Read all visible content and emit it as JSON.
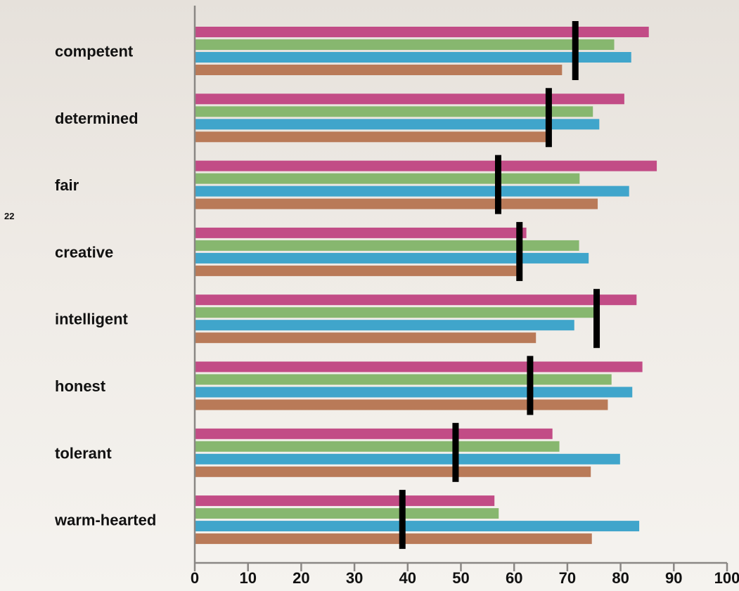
{
  "page": {
    "number": "22"
  },
  "chart_data": {
    "type": "bar",
    "orientation": "horizontal",
    "categories": [
      "competent",
      "determined",
      "fair",
      "creative",
      "intelligent",
      "honest",
      "tolerant",
      "warm-hearted"
    ],
    "series": [
      {
        "color": "#c24c86",
        "values": [
          85.3,
          80.7,
          86.8,
          62.3,
          83.0,
          84.1,
          67.2,
          56.3
        ]
      },
      {
        "color": "#87b76f",
        "values": [
          78.8,
          74.8,
          72.3,
          72.2,
          75.1,
          78.3,
          68.5,
          57.1
        ]
      },
      {
        "color": "#40a5cb",
        "values": [
          82.0,
          76.0,
          81.6,
          74.0,
          71.3,
          82.2,
          79.9,
          83.5
        ]
      },
      {
        "color": "#b97a58",
        "values": [
          69.0,
          66.0,
          75.7,
          60.5,
          64.1,
          77.6,
          74.4,
          74.6
        ]
      }
    ],
    "markers": [
      71.5,
      66.5,
      57.0,
      61.0,
      75.5,
      63.0,
      49.0,
      39.0
    ],
    "marker_color": "#000000",
    "xlim": [
      0,
      100
    ],
    "xticks": [
      0,
      10,
      20,
      30,
      40,
      50,
      60,
      70,
      80,
      90,
      100
    ],
    "grid": false,
    "legend": "none",
    "title": "",
    "xlabel": "",
    "ylabel": ""
  }
}
